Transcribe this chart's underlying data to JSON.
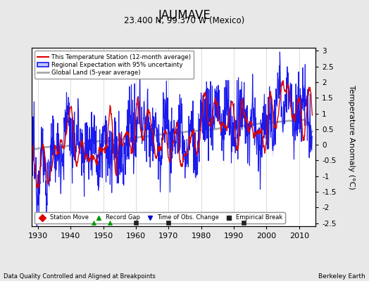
{
  "title": "JAUMAVE",
  "subtitle": "23.400 N, 99.370 W (Mexico)",
  "ylabel": "Temperature Anomaly (°C)",
  "xlabel_left": "Data Quality Controlled and Aligned at Breakpoints",
  "xlabel_right": "Berkeley Earth",
  "year_start": 1927,
  "year_end": 2014,
  "ylim": [
    -2.6,
    3.1
  ],
  "yticks": [
    -2.5,
    -2,
    -1.5,
    -1,
    -0.5,
    0,
    0.5,
    1,
    1.5,
    2,
    2.5,
    3
  ],
  "xticks": [
    1930,
    1940,
    1950,
    1960,
    1970,
    1980,
    1990,
    2000,
    2010
  ],
  "background_color": "#e8e8e8",
  "plot_bg_color": "#ffffff",
  "station_color": "#dd0000",
  "regional_color": "#1a1aee",
  "uncertainty_color": "#c0c8ff",
  "global_color": "#aaaaaa",
  "record_gaps": [
    1947,
    1952
  ],
  "emp_breaks": [
    1960,
    1970,
    1993
  ],
  "seed": 12345
}
